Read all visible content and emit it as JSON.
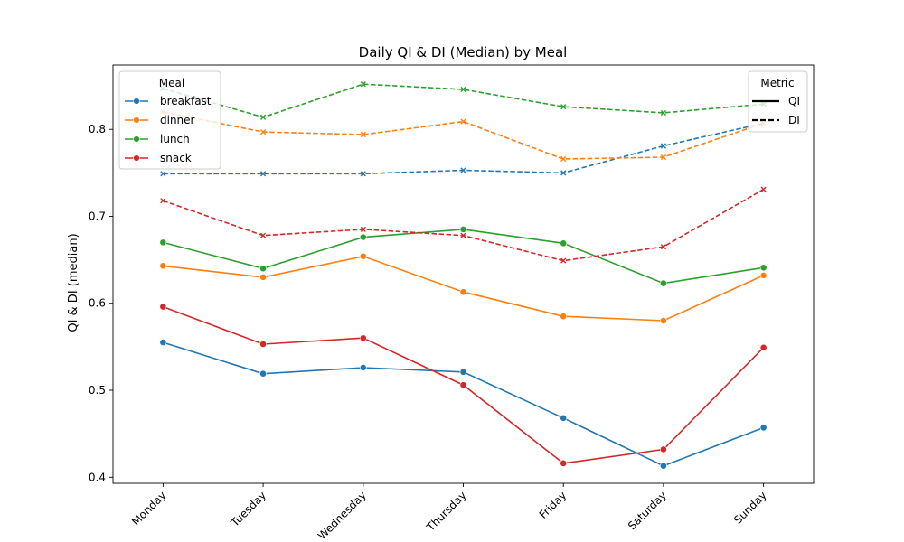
{
  "chart_data": {
    "type": "line",
    "title": "Daily QI & DI (Median) by Meal",
    "xlabel": "",
    "ylabel": "QI & DI (median)",
    "categories": [
      "Monday",
      "Tuesday",
      "Wednesday",
      "Thursday",
      "Friday",
      "Saturday",
      "Sunday"
    ],
    "ylim": [
      0.393,
      0.874
    ],
    "yticks": [
      "0.4",
      "0.5",
      "0.6",
      "0.7",
      "0.8"
    ],
    "grid": false,
    "legends": {
      "meal": {
        "title": "Meal",
        "placement": "top-left"
      },
      "metric": {
        "title": "Metric",
        "placement": "top-right",
        "items": [
          {
            "label": "QI",
            "style": "solid"
          },
          {
            "label": "DI",
            "style": "dashed"
          }
        ]
      }
    },
    "series": [
      {
        "name": "breakfast",
        "color": "#1f77b4",
        "qi": [
          0.555,
          0.519,
          0.526,
          0.521,
          0.468,
          0.413,
          0.457
        ],
        "di": [
          0.749,
          0.749,
          0.749,
          0.753,
          0.75,
          0.781,
          0.807
        ]
      },
      {
        "name": "dinner",
        "color": "#ff7f0e",
        "qi": [
          0.643,
          0.63,
          0.654,
          0.613,
          0.585,
          0.58,
          0.632
        ],
        "di": [
          0.82,
          0.797,
          0.794,
          0.809,
          0.766,
          0.768,
          0.807
        ]
      },
      {
        "name": "lunch",
        "color": "#2ca02c",
        "qi": [
          0.67,
          0.64,
          0.676,
          0.685,
          0.669,
          0.623,
          0.641
        ],
        "di": [
          0.847,
          0.814,
          0.852,
          0.846,
          0.826,
          0.819,
          0.829
        ]
      },
      {
        "name": "snack",
        "color": "#d62728",
        "qi": [
          0.596,
          0.553,
          0.56,
          0.506,
          0.416,
          0.432,
          0.549
        ],
        "di": [
          0.718,
          0.678,
          0.685,
          0.678,
          0.649,
          0.665,
          0.731
        ]
      }
    ]
  }
}
